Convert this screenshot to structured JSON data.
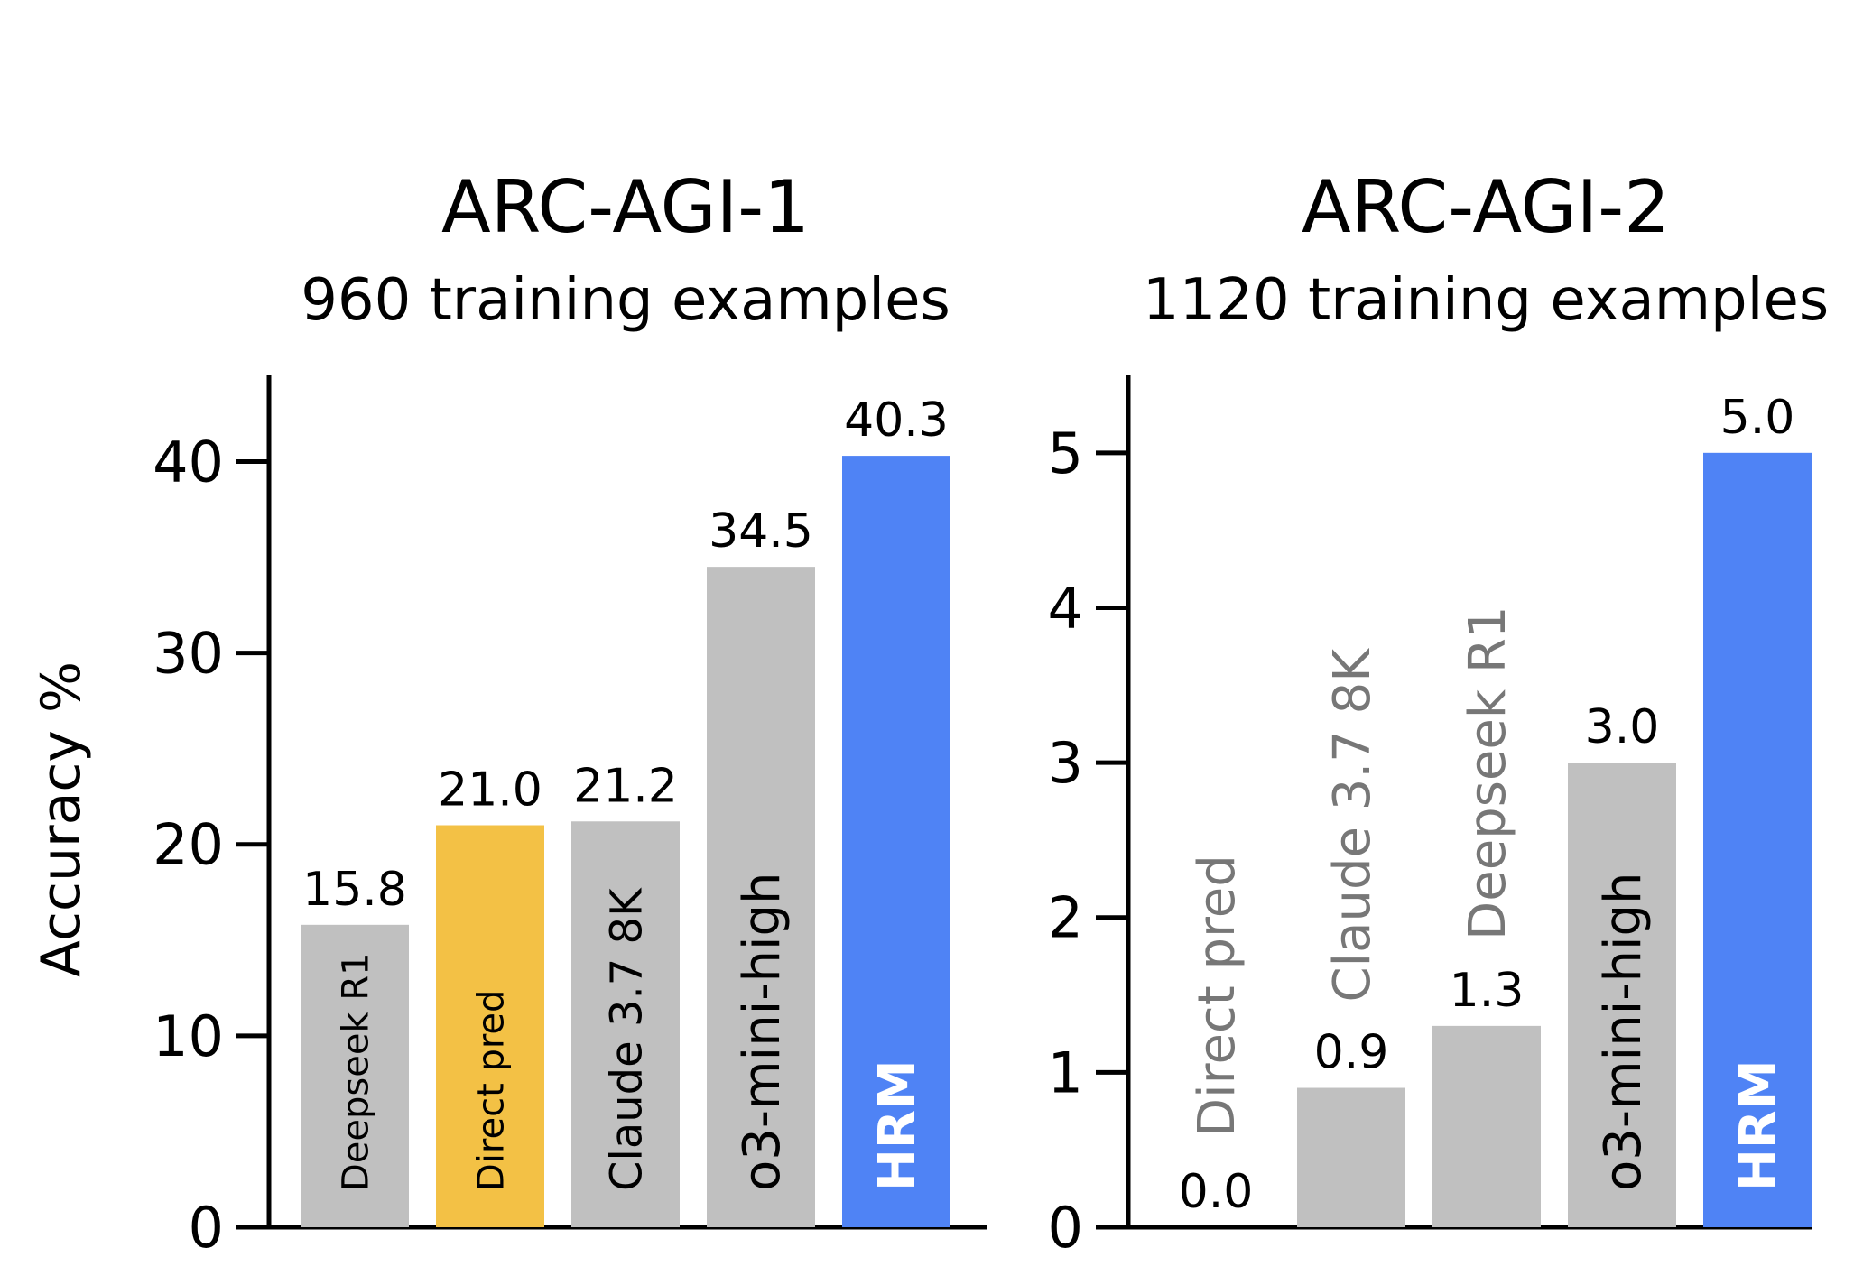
{
  "chart_data": [
    {
      "type": "bar",
      "title": "ARC-AGI-1",
      "subtitle": "960 training examples",
      "ylabel": "Accuracy %",
      "ylim": [
        0,
        44.5
      ],
      "yticks": [
        0,
        10,
        20,
        30,
        40
      ],
      "categories": [
        "Deepseek R1",
        "Direct pred",
        "Claude 3.7 8K",
        "o3-mini-high",
        "HRM"
      ],
      "values": [
        15.8,
        21.0,
        21.2,
        34.5,
        40.3
      ],
      "value_labels": [
        "15.8",
        "21.0",
        "21.2",
        "34.5",
        "40.3"
      ],
      "bar_colors": [
        "#c0c0c0",
        "#f3c145",
        "#c0c0c0",
        "#c0c0c0",
        "#4f83f5"
      ],
      "label_colors": [
        "#000000",
        "#000000",
        "#000000",
        "#000000",
        "#ffffff"
      ],
      "label_bold": [
        false,
        false,
        false,
        false,
        true
      ],
      "label_size": [
        "small",
        "small",
        "medium",
        "large",
        "large"
      ],
      "grid": false
    },
    {
      "type": "bar",
      "title": "ARC-AGI-2",
      "subtitle": "1120 training examples",
      "ylabel": "",
      "ylim": [
        0,
        5.5
      ],
      "yticks": [
        0,
        1,
        2,
        3,
        4,
        5
      ],
      "categories": [
        "Direct pred",
        "Claude 3.7 8K",
        "Deepseek R1",
        "o3-mini-high",
        "HRM"
      ],
      "values": [
        0.0,
        0.9,
        1.3,
        3.0,
        5.0
      ],
      "value_labels": [
        "0.0",
        "0.9",
        "1.3",
        "3.0",
        "5.0"
      ],
      "bar_colors": [
        "#c0c0c0",
        "#c0c0c0",
        "#c0c0c0",
        "#c0c0c0",
        "#4f83f5"
      ],
      "label_colors": [
        "#777777",
        "#777777",
        "#777777",
        "#000000",
        "#ffffff"
      ],
      "label_bold": [
        false,
        false,
        false,
        false,
        true
      ],
      "label_size": [
        "large",
        "large",
        "large",
        "large",
        "large"
      ],
      "grid": false
    }
  ]
}
